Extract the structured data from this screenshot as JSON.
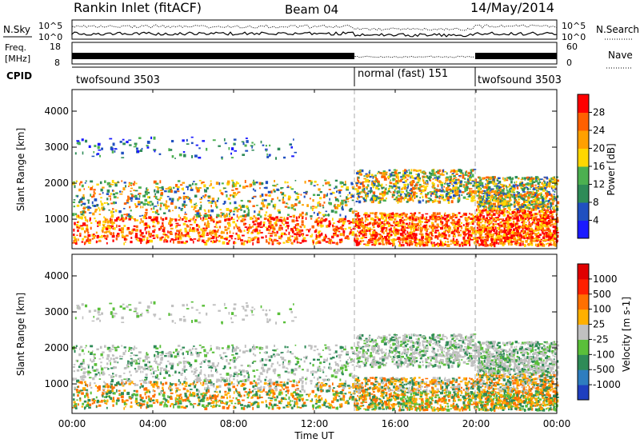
{
  "header": {
    "station": "Rankin Inlet (fitACF)",
    "beam": "Beam 04",
    "date": "14/May/2014"
  },
  "chart_data": {
    "type": "heatmap",
    "x_ticks": [
      "00:00",
      "04:00",
      "08:00",
      "12:00",
      "16:00",
      "20:00",
      "00:00"
    ],
    "x_range_hours": [
      0,
      24
    ],
    "xlabel": "Time UT",
    "mode_changes_hours": [
      14,
      20
    ],
    "cpid": {
      "label": "CPID",
      "segments": [
        {
          "label": "twofsound 3503",
          "start": 0,
          "end": 14
        },
        {
          "label": "normal (fast) 151",
          "start": 14,
          "end": 20
        },
        {
          "label": "twofsound 3503",
          "start": 20,
          "end": 24
        }
      ]
    },
    "noise_panel": {
      "left_label": "N.Sky",
      "right_label": "N.Search",
      "left_ticks": [
        "10^5",
        "10^0"
      ],
      "right_ticks": [
        "10^5",
        "10^0"
      ]
    },
    "freq_panel": {
      "left_label_1": "Freq.",
      "left_label_2": "[MHz]",
      "left_ticks": [
        "18",
        "8"
      ],
      "right_label": "Nave",
      "right_ticks": [
        "60",
        "0"
      ]
    },
    "power_panel": {
      "ylabel": "Slant Range [km]",
      "y_ticks": [
        1000,
        2000,
        3000,
        4000
      ],
      "y_range": [
        180,
        4600
      ],
      "colorbar_label": "Power [dB]",
      "colorbar_ticks": [
        "4",
        "8",
        "12",
        "16",
        "20",
        "24",
        "28"
      ],
      "colorbar_colors": [
        "#1a1aff",
        "#2050c0",
        "#2e8b57",
        "#4cb050",
        "#ffd700",
        "#ffa000",
        "#ff6000",
        "#ff0000"
      ]
    },
    "velocity_panel": {
      "ylabel": "Slant Range [km]",
      "y_ticks": [
        1000,
        2000,
        3000,
        4000
      ],
      "y_range": [
        180,
        4600
      ],
      "colorbar_label": "Velocity [m s-1]",
      "colorbar_ticks": [
        "1000",
        "500",
        "100",
        "25",
        "-25",
        "-100",
        "-500",
        "-1000"
      ],
      "colorbar_colors": [
        "#1f3fbf",
        "#2e7dbf",
        "#2e8b57",
        "#5abf3a",
        "#c0c0c0",
        "#ffb000",
        "#ff7000",
        "#ff2000",
        "#e00000"
      ]
    },
    "scatter_bands": [
      {
        "t0": 0.0,
        "t1": 14.0,
        "r0": 350,
        "r1": 1100,
        "kind": "strong"
      },
      {
        "t0": 0.0,
        "t1": 14.0,
        "r0": 1100,
        "r1": 2100,
        "kind": "medium"
      },
      {
        "t0": 0.0,
        "t1": 11.0,
        "r0": 2700,
        "r1": 3300,
        "kind": "weak"
      },
      {
        "t0": 14.0,
        "t1": 20.0,
        "r0": 300,
        "r1": 1200,
        "kind": "strong"
      },
      {
        "t0": 14.0,
        "t1": 20.0,
        "r0": 1500,
        "r1": 2400,
        "kind": "medium"
      },
      {
        "t0": 20.0,
        "t1": 24.0,
        "r0": 300,
        "r1": 1300,
        "kind": "strong"
      },
      {
        "t0": 20.0,
        "t1": 24.0,
        "r0": 1300,
        "r1": 2200,
        "kind": "medium"
      }
    ]
  }
}
